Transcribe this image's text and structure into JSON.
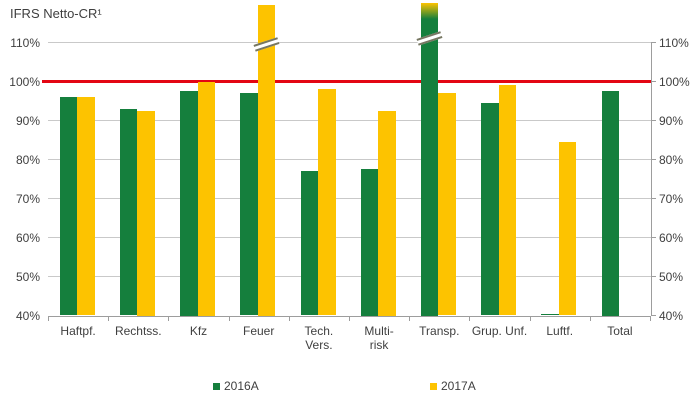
{
  "title": "IFRS Netto-CR¹",
  "legend": [
    {
      "label": "2016A",
      "color": "#157f3d"
    },
    {
      "label": "2017A",
      "color": "#fdc300"
    }
  ],
  "chart_data": {
    "type": "bar",
    "title": "IFRS Netto-CR¹",
    "categories": [
      "Haftpf.",
      "Rechtss.",
      "Kfz",
      "Feuer",
      "Tech.\nVers.",
      "Multi-\nrisk",
      "Transp.",
      "Grup. Unf.",
      "Luftf.",
      "Total"
    ],
    "series": [
      {
        "name": "2016A",
        "color": "#157f3d",
        "values": [
          96,
          93,
          97.5,
          97,
          77,
          77.5,
          {
            "display": ">110%",
            "clipped": true,
            "cap_color": "#fdc300"
          },
          94.5,
          40.5,
          97.5
        ]
      },
      {
        "name": "2017A",
        "color": "#fdc300",
        "values": [
          96,
          92.5,
          100,
          {
            "display": ">110%",
            "clipped": true
          },
          98,
          92.5,
          97,
          99,
          84.5,
          null
        ]
      }
    ],
    "ylim": [
      40,
      110
    ],
    "ytick_labels": [
      "40%",
      "50%",
      "60%",
      "70%",
      "80%",
      "90%",
      "100%",
      "110%"
    ],
    "grid": true,
    "axis_label_sides": "both",
    "reference_line": {
      "value": 100,
      "color": "#e30613"
    },
    "legend_position": "bottom",
    "clipped_note": "Bars marked >110% exceed the axis maximum and are drawn cut off with a diagonal break symbol",
    "colors": {
      "gridline": "#c9c9c9",
      "axis": "#9d9d9d",
      "text": "#3f3f3f"
    }
  }
}
